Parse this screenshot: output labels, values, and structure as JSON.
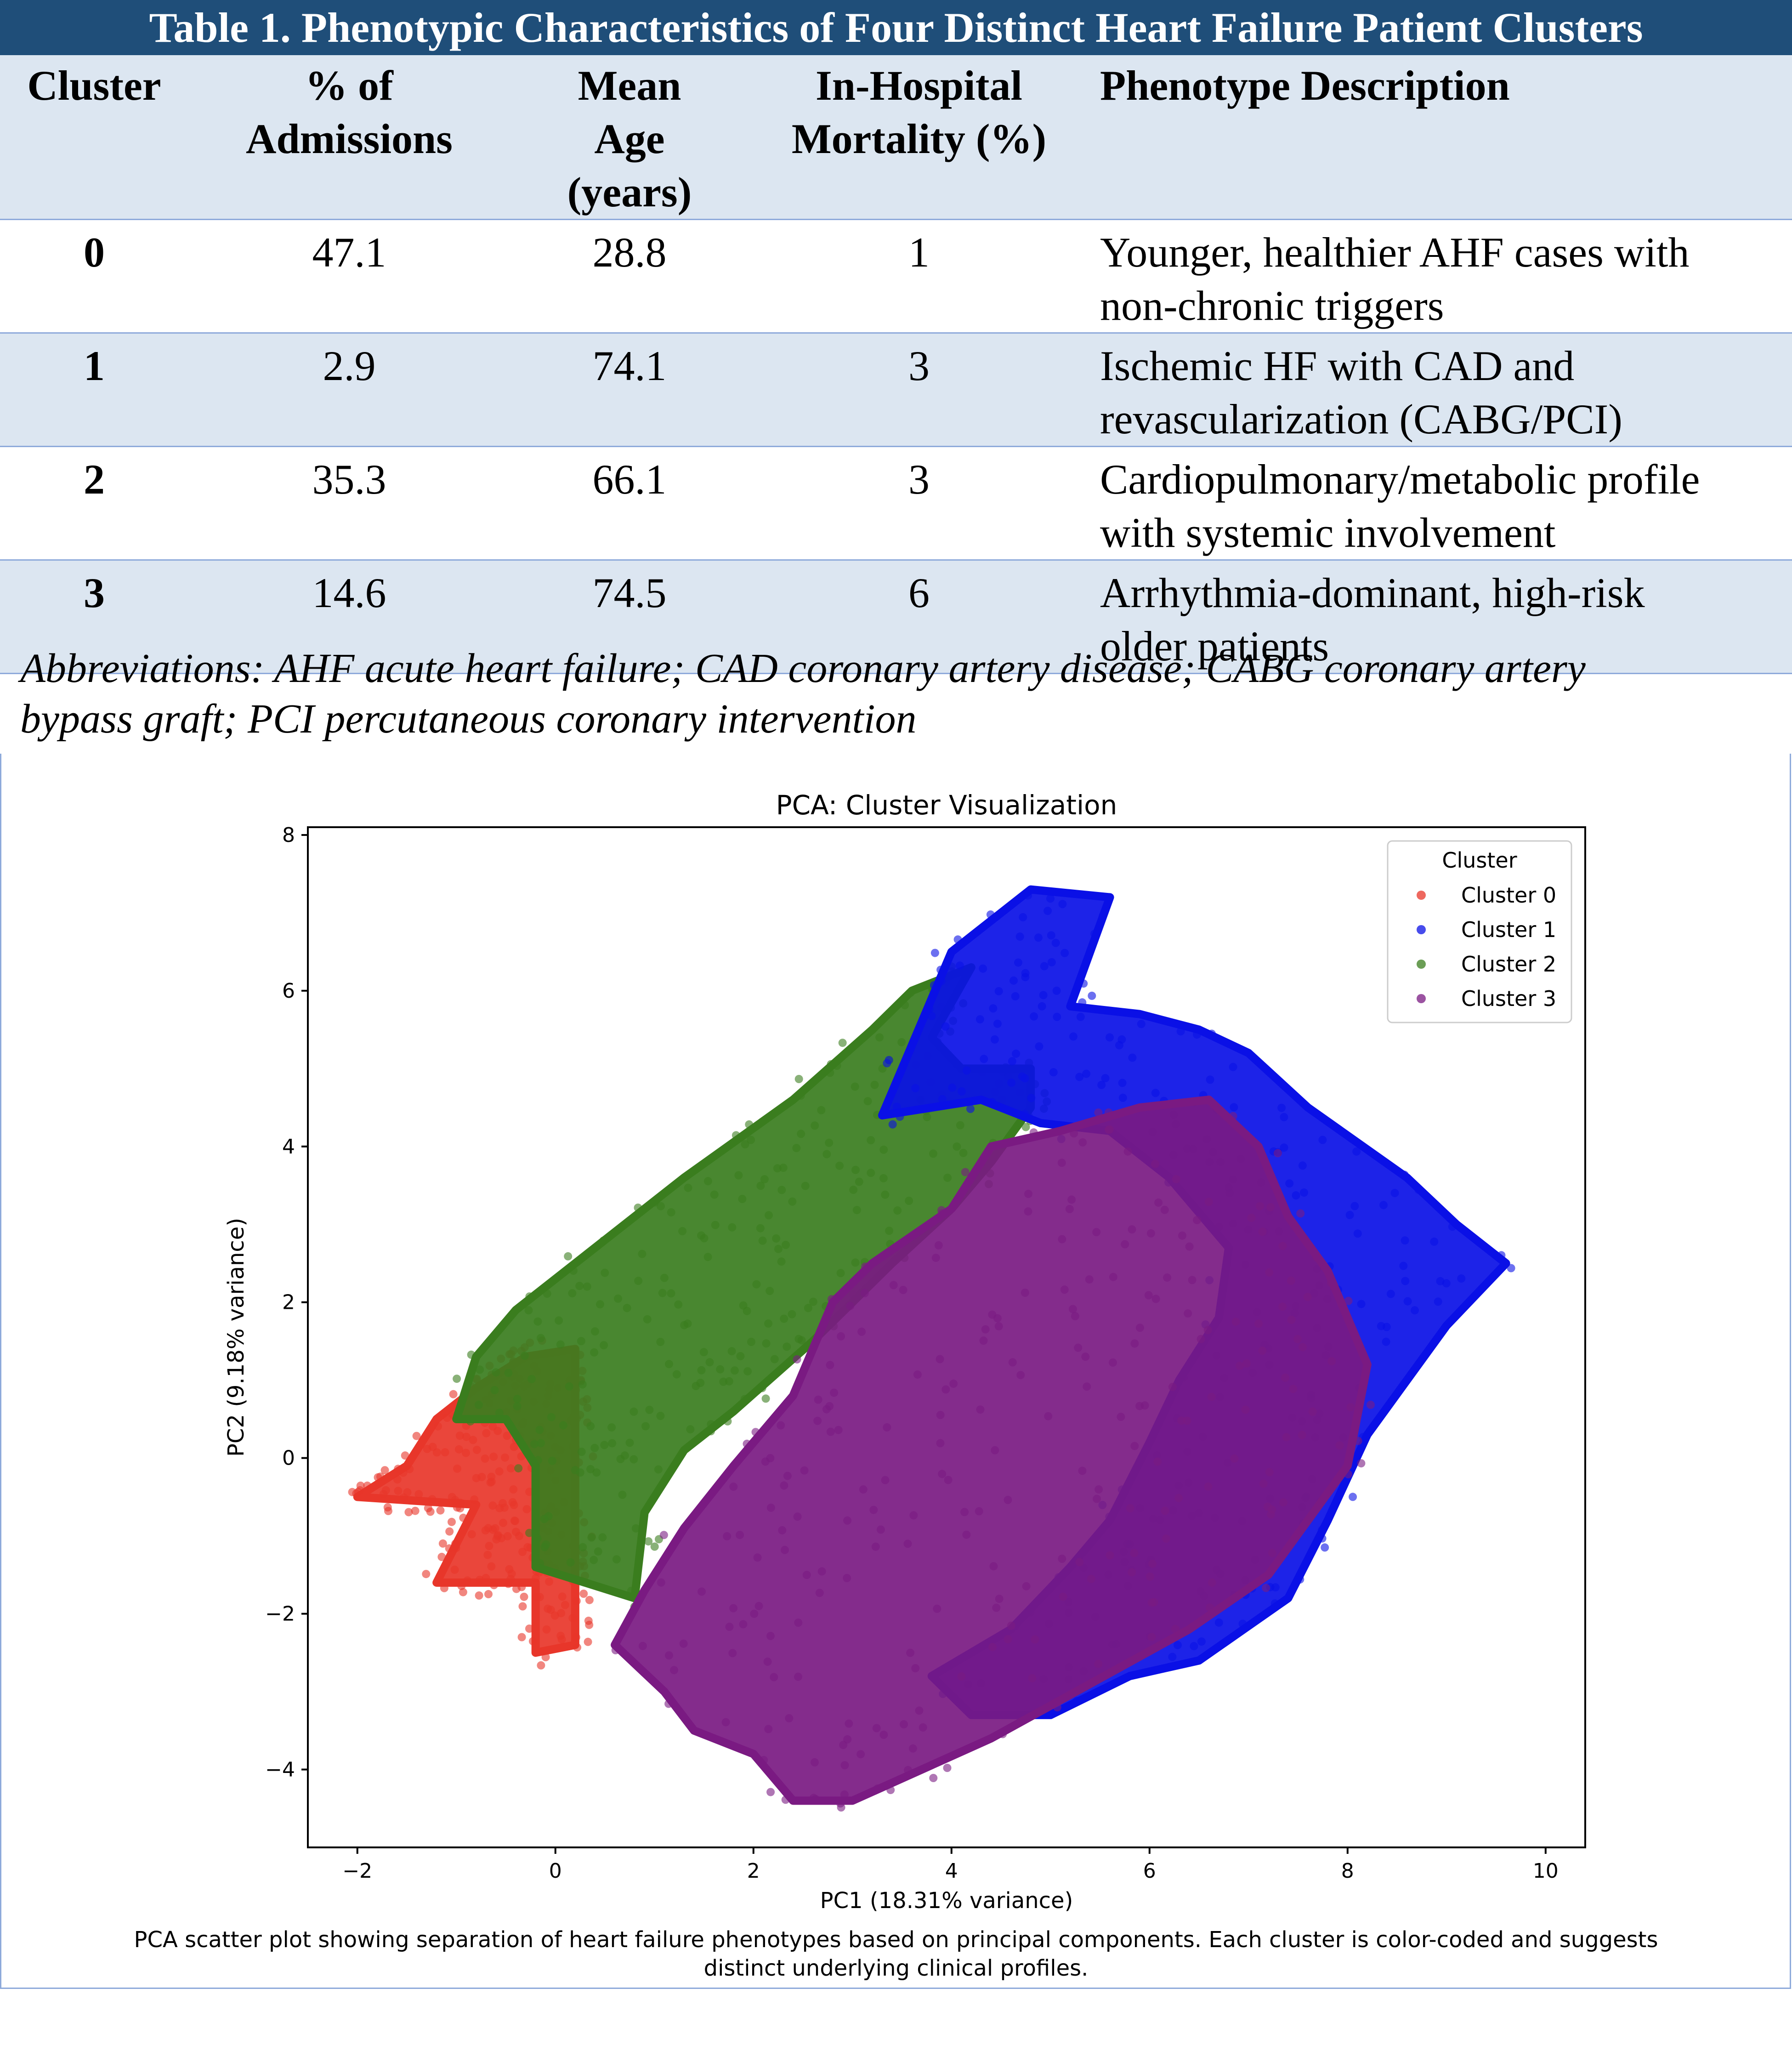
{
  "table": {
    "title": "Table 1. Phenotypic Characteristics of Four Distinct Heart Failure Patient Clusters",
    "headers": {
      "cluster": [
        "Cluster"
      ],
      "admissions": [
        "% of",
        "Admissions"
      ],
      "age": [
        "Mean",
        "Age",
        "(years)"
      ],
      "mortality": [
        "In-Hospital",
        "Mortality (%)"
      ],
      "description": [
        "Phenotype Description"
      ]
    },
    "rows": [
      {
        "cluster": "0",
        "admissions": "47.1",
        "age": "28.8",
        "mortality": "1",
        "description": [
          "Younger, healthier AHF cases with",
          "non-chronic triggers"
        ]
      },
      {
        "cluster": "1",
        "admissions": "2.9",
        "age": "74.1",
        "mortality": "3",
        "description": [
          "Ischemic HF with CAD and",
          "revascularization (CABG/PCI)"
        ]
      },
      {
        "cluster": "2",
        "admissions": "35.3",
        "age": "66.1",
        "mortality": "3",
        "description": [
          "Cardiopulmonary/metabolic profile",
          "with systemic involvement"
        ]
      },
      {
        "cluster": "3",
        "admissions": "14.6",
        "age": "74.5",
        "mortality": "6",
        "description": [
          "Arrhythmia-dominant, high-risk",
          "older patients"
        ]
      }
    ],
    "abbreviations": [
      "Abbreviations: AHF acute heart failure; CAD coronary artery disease; CABG coronary artery",
      "bypass graft; PCI percutaneous coronary intervention"
    ]
  },
  "colors": {
    "header_bg": "#1f4e79",
    "shade_bg": "#dce6f1",
    "rule": "#8eaadb"
  },
  "chart_data": {
    "type": "scatter",
    "title": "PCA: Cluster Visualization",
    "xlabel": "PC1 (18.31% variance)",
    "ylabel": "PC2 (9.18% variance)",
    "xlim": [
      -2.5,
      10.4
    ],
    "ylim": [
      -5.0,
      8.1
    ],
    "xticks": [
      -2,
      0,
      2,
      4,
      6,
      8,
      10
    ],
    "yticks": [
      -4,
      -2,
      0,
      2,
      4,
      6,
      8
    ],
    "grid": false,
    "legend": {
      "title": "Cluster",
      "position": "top-right"
    },
    "series": [
      {
        "name": "Cluster 0",
        "color": "#e8362a",
        "region": [
          [
            -2.0,
            -0.5
          ],
          [
            -1.5,
            -0.1
          ],
          [
            -1.2,
            0.5
          ],
          [
            -0.8,
            0.9
          ],
          [
            -0.3,
            1.3
          ],
          [
            0.2,
            1.4
          ],
          [
            0.2,
            -2.4
          ],
          [
            -0.2,
            -2.5
          ],
          [
            -0.2,
            -1.6
          ],
          [
            -1.2,
            -1.6
          ],
          [
            -0.8,
            -0.6
          ]
        ]
      },
      {
        "name": "Cluster 2",
        "color": "#3a7d1e",
        "region": [
          [
            -1.0,
            0.5
          ],
          [
            -0.8,
            1.3
          ],
          [
            -0.4,
            1.9
          ],
          [
            0.6,
            2.9
          ],
          [
            1.3,
            3.6
          ],
          [
            2.4,
            4.6
          ],
          [
            3.2,
            5.5
          ],
          [
            3.6,
            6.0
          ],
          [
            4.2,
            6.3
          ],
          [
            3.8,
            5.4
          ],
          [
            4.1,
            5.0
          ],
          [
            4.8,
            5.0
          ],
          [
            4.8,
            4.5
          ],
          [
            4.4,
            3.8
          ],
          [
            4.0,
            3.2
          ],
          [
            3.4,
            2.5
          ],
          [
            2.6,
            1.5
          ],
          [
            1.8,
            0.6
          ],
          [
            1.3,
            0.1
          ],
          [
            0.9,
            -0.7
          ],
          [
            0.8,
            -1.8
          ],
          [
            -0.2,
            -1.4
          ],
          [
            -0.2,
            -0.1
          ],
          [
            -0.5,
            0.5
          ]
        ]
      },
      {
        "name": "Cluster 1",
        "color": "#0a10e6",
        "region": [
          [
            4.0,
            6.5
          ],
          [
            4.8,
            7.3
          ],
          [
            5.6,
            7.2
          ],
          [
            5.2,
            5.8
          ],
          [
            5.9,
            5.7
          ],
          [
            6.5,
            5.5
          ],
          [
            7.0,
            5.2
          ],
          [
            7.6,
            4.5
          ],
          [
            8.6,
            3.6
          ],
          [
            9.1,
            3.0
          ],
          [
            9.6,
            2.5
          ],
          [
            9.0,
            1.7
          ],
          [
            8.2,
            0.3
          ],
          [
            7.8,
            -0.8
          ],
          [
            7.4,
            -1.8
          ],
          [
            6.5,
            -2.6
          ],
          [
            5.8,
            -2.8
          ],
          [
            5.0,
            -3.3
          ],
          [
            4.2,
            -3.3
          ],
          [
            3.8,
            -2.8
          ],
          [
            4.6,
            -2.2
          ],
          [
            5.2,
            -1.4
          ],
          [
            5.6,
            -0.8
          ],
          [
            6.0,
            0.2
          ],
          [
            6.3,
            1.0
          ],
          [
            6.7,
            1.8
          ],
          [
            6.8,
            2.7
          ],
          [
            6.2,
            3.6
          ],
          [
            5.6,
            4.2
          ],
          [
            4.9,
            4.3
          ],
          [
            4.3,
            4.6
          ],
          [
            3.3,
            4.4
          ]
        ]
      },
      {
        "name": "Cluster 3",
        "color": "#7a1a82",
        "region": [
          [
            0.9,
            -1.7
          ],
          [
            1.3,
            -0.9
          ],
          [
            1.8,
            -0.1
          ],
          [
            2.4,
            0.8
          ],
          [
            2.8,
            2.0
          ],
          [
            3.2,
            2.5
          ],
          [
            4.0,
            3.2
          ],
          [
            4.4,
            4.0
          ],
          [
            5.1,
            4.2
          ],
          [
            5.9,
            4.5
          ],
          [
            6.6,
            4.6
          ],
          [
            7.1,
            4.0
          ],
          [
            7.4,
            3.1
          ],
          [
            7.8,
            2.4
          ],
          [
            8.2,
            1.2
          ],
          [
            8.0,
            -0.1
          ],
          [
            7.2,
            -1.5
          ],
          [
            6.4,
            -2.2
          ],
          [
            5.4,
            -2.9
          ],
          [
            4.4,
            -3.6
          ],
          [
            3.0,
            -4.4
          ],
          [
            2.4,
            -4.4
          ],
          [
            2.0,
            -3.8
          ],
          [
            1.4,
            -3.5
          ],
          [
            1.1,
            -3.0
          ],
          [
            0.6,
            -2.4
          ]
        ]
      }
    ]
  },
  "figure_caption": [
    "PCA scatter plot showing separation of heart failure phenotypes based on principal components. Each cluster is color-coded and suggests",
    "distinct underlying clinical profiles."
  ]
}
